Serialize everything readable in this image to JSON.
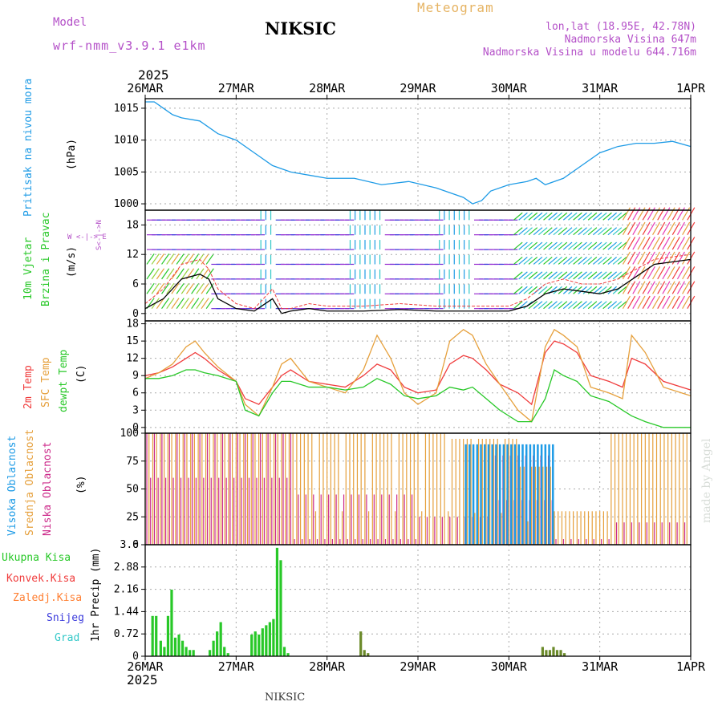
{
  "header": {
    "model_label": "Model",
    "model_name": "wrf-nmm_v3.9.1 e1km",
    "station_title": "NIKSIC",
    "meteogram_label": "Meteogram",
    "coords": "lon,lat (18.95E, 42.78N)",
    "altitude": "Nadmorska Visina 647m",
    "model_altitude": "Nadmorska Visina u modelu 644.716m"
  },
  "footer": {
    "station": "NIKSIC",
    "credit": "made by Angel"
  },
  "colors": {
    "pressure": "#1e9be6",
    "temp2m": "#f03c3c",
    "sfc": "#e6a03c",
    "dewpt": "#28c828",
    "high_cloud": "#1e9be6",
    "mid_cloud": "#e6a03c",
    "low_cloud": "#cc2a8a",
    "precip_total": "#28c828",
    "precip_conv": "#f03c3c",
    "precip_frozen": "#ff7f32",
    "snow": "#3c3cdc",
    "graupel": "#32c8c8",
    "header_purple": "#b450c8",
    "meteogram_orange": "#e6b464"
  },
  "chart_data": [
    {
      "type": "line",
      "panel": "pressure",
      "ylabel_main": "Pritisak na nivou mora",
      "ylabel_unit": "(hPa)",
      "x_ticks": [
        "26MAR",
        "27MAR",
        "28MAR",
        "29MAR",
        "30MAR",
        "31MAR",
        "1APR"
      ],
      "x_year_top": "2025",
      "x_ticks_bottom": [
        "26MAR",
        "27MAR",
        "28MAR",
        "29MAR",
        "30MAR",
        "31MAR",
        "1APR"
      ],
      "x_year_bottom": "2025",
      "ylim": [
        999,
        1016.5
      ],
      "y_ticks": [
        1000,
        1005,
        1010,
        1015
      ],
      "x": [
        0,
        0.1,
        0.2,
        0.3,
        0.4,
        0.6,
        0.8,
        1.0,
        1.2,
        1.4,
        1.6,
        1.8,
        2.0,
        2.3,
        2.6,
        2.9,
        3.2,
        3.5,
        3.6,
        3.7,
        3.8,
        4.0,
        4.2,
        4.3,
        4.4,
        4.6,
        4.8,
        5.0,
        5.2,
        5.4,
        5.6,
        5.8,
        6.0
      ],
      "series": [
        {
          "values": [
            1016,
            1016,
            1015,
            1014,
            1013.5,
            1013,
            1011,
            1010,
            1008,
            1006,
            1005,
            1004.5,
            1004,
            1004,
            1003,
            1003.5,
            1002.5,
            1001,
            1000,
            1000.5,
            1002,
            1003,
            1003.5,
            1004,
            1003,
            1004,
            1006,
            1008,
            1009,
            1009.5,
            1009.5,
            1009.8,
            1009
          ]
        }
      ]
    },
    {
      "type": "line",
      "panel": "wind",
      "ylabel_main": "10m Vjetar",
      "ylabel_main2": "Brzina i Pravac",
      "ylabel_unit": "(m/s)",
      "compass": "N\n^\nW <-|-> E\n v\n S",
      "ylim": [
        -1.5,
        21
      ],
      "y_ticks": [
        0,
        6,
        12,
        18
      ],
      "x": [
        0,
        0.2,
        0.4,
        0.6,
        0.7,
        0.8,
        1.0,
        1.2,
        1.4,
        1.5,
        1.6,
        1.8,
        2.0,
        2.4,
        2.8,
        3.2,
        3.6,
        4.0,
        4.2,
        4.4,
        4.6,
        4.8,
        5.0,
        5.2,
        5.6,
        6.0
      ],
      "series": [
        {
          "name": "mean",
          "values": [
            1,
            3,
            7,
            8,
            7,
            3,
            1,
            0.5,
            3,
            0,
            0.5,
            1,
            0.5,
            0.5,
            0.8,
            0.5,
            0.5,
            0.5,
            1.5,
            4,
            5,
            4.5,
            4,
            5,
            10,
            11
          ]
        },
        {
          "name": "gust",
          "values": [
            2,
            5,
            10,
            11,
            9,
            5,
            2,
            1,
            5,
            1,
            1,
            2,
            1.5,
            1.5,
            2,
            1.5,
            1.5,
            1.5,
            3,
            6,
            7,
            6,
            6,
            7,
            11,
            12
          ]
        }
      ],
      "barb_rows": [
        0,
        3,
        6,
        9,
        12,
        15,
        18
      ]
    },
    {
      "type": "line",
      "panel": "temperature",
      "ylabel_main": "2m Temp",
      "ylabel_main2": "SFC Temp",
      "ylabel_main3": "dewpt Temp",
      "ylabel_unit": "(C)",
      "ylim": [
        -1,
        18.5
      ],
      "y_ticks": [
        0,
        3,
        6,
        9,
        12,
        15,
        18
      ],
      "x": [
        0,
        0.15,
        0.3,
        0.45,
        0.55,
        0.65,
        0.8,
        1.0,
        1.1,
        1.25,
        1.4,
        1.5,
        1.6,
        1.8,
        2.0,
        2.2,
        2.4,
        2.55,
        2.7,
        2.85,
        3.0,
        3.2,
        3.35,
        3.5,
        3.6,
        3.75,
        3.9,
        4.1,
        4.25,
        4.4,
        4.5,
        4.6,
        4.75,
        4.9,
        5.1,
        5.25,
        5.35,
        5.5,
        5.7,
        6.0
      ],
      "series": [
        {
          "name": "2m Temp",
          "values": [
            9,
            9.5,
            10.5,
            12,
            13,
            12,
            10,
            8,
            5,
            4,
            7,
            9,
            10,
            8,
            7.5,
            7,
            9,
            11,
            10,
            7,
            6,
            6.5,
            11,
            12.5,
            12,
            10,
            7.5,
            6,
            4,
            13,
            15,
            14.5,
            13,
            9,
            8,
            7,
            12,
            11,
            8,
            6.5
          ]
        },
        {
          "name": "SFC Temp",
          "values": [
            8.5,
            9.5,
            11,
            14,
            15,
            13,
            10.5,
            8,
            4,
            2,
            7,
            11,
            12,
            8,
            7,
            6,
            10,
            16,
            12,
            6,
            4,
            6,
            15,
            17,
            16,
            11,
            7.5,
            3,
            1,
            14,
            17,
            16,
            14,
            7,
            6,
            5,
            16,
            13,
            7,
            5.5
          ]
        },
        {
          "name": "dewpt Temp",
          "values": [
            8.5,
            8.5,
            9,
            10,
            10,
            9.5,
            9,
            8,
            3,
            2,
            6,
            8,
            8,
            7,
            7,
            6.5,
            7,
            8.5,
            7.5,
            5.5,
            5,
            5.5,
            7,
            6.5,
            7,
            5,
            3,
            1,
            1,
            5,
            10,
            9,
            8,
            5.5,
            4.5,
            3,
            2,
            1,
            0,
            0
          ]
        }
      ]
    },
    {
      "type": "bar",
      "panel": "clouds",
      "ylabel_main": "Visoka Oblacnost",
      "ylabel_main2": "Srednja Oblacnost",
      "ylabel_main3": "Niska Oblacnost",
      "ylabel_unit": "(%)",
      "ylim": [
        0,
        100
      ],
      "y_ticks": [
        0,
        25,
        50,
        75,
        100
      ],
      "x_range": [
        0,
        6
      ],
      "bar_count": 144,
      "series": [
        {
          "name": "mid",
          "segments": [
            {
              "from": 0.0,
              "to": 3.35,
              "value": 100
            },
            {
              "from": 3.35,
              "to": 4.1,
              "value": 95
            },
            {
              "from": 4.1,
              "to": 4.5,
              "value": 70
            },
            {
              "from": 4.5,
              "to": 5.1,
              "value": 30
            },
            {
              "from": 5.1,
              "to": 6.0,
              "value": 100
            }
          ]
        },
        {
          "name": "low",
          "segments": [
            {
              "from": 0.0,
              "to": 1.6,
              "value": 100
            },
            {
              "from": 1.6,
              "to": 3.0,
              "value": 45
            },
            {
              "from": 3.0,
              "to": 3.8,
              "value": 25
            },
            {
              "from": 3.8,
              "to": 4.5,
              "value": 80
            },
            {
              "from": 4.5,
              "to": 5.1,
              "value": 5
            },
            {
              "from": 5.1,
              "to": 6.0,
              "value": 20
            }
          ]
        },
        {
          "name": "high",
          "segments": [
            {
              "from": 0.0,
              "to": 3.5,
              "value": 0
            },
            {
              "from": 3.5,
              "to": 4.5,
              "value": 90
            },
            {
              "from": 4.5,
              "to": 6.0,
              "value": 0
            }
          ]
        }
      ]
    },
    {
      "type": "bar",
      "panel": "precipitation",
      "legend": [
        "Ukupna Kisa",
        "Konvek.Kisa",
        "Zaledj.Kisa",
        "Snijeg",
        "Grad"
      ],
      "ylabel_unit": "1hr Precip (mm)",
      "ylim": [
        0,
        3.6
      ],
      "y_ticks": [
        0,
        0.72,
        1.44,
        2.16,
        2.88,
        3.6
      ],
      "x": [
        0.08,
        0.12,
        0.17,
        0.21,
        0.25,
        0.29,
        0.33,
        0.37,
        0.41,
        0.45,
        0.49,
        0.53,
        0.71,
        0.75,
        0.79,
        0.83,
        0.87,
        0.91,
        1.17,
        1.21,
        1.25,
        1.29,
        1.33,
        1.37,
        1.41,
        1.45,
        1.49,
        1.53,
        1.57,
        2.37,
        2.41,
        2.45,
        4.37,
        4.41,
        4.45,
        4.49,
        4.53,
        4.57,
        4.61
      ],
      "values": [
        1.3,
        1.3,
        0.5,
        0.3,
        1.3,
        2.15,
        0.6,
        0.7,
        0.5,
        0.3,
        0.2,
        0.2,
        0.2,
        0.5,
        0.8,
        1.1,
        0.3,
        0.1,
        0.7,
        0.8,
        0.7,
        0.9,
        1.0,
        1.1,
        1.2,
        3.5,
        3.1,
        0.3,
        0.1,
        0.8,
        0.2,
        0.1,
        0.3,
        0.2,
        0.2,
        0.3,
        0.2,
        0.2,
        0.1
      ],
      "x_ticks": [
        "26MAR",
        "27MAR",
        "28MAR",
        "29MAR",
        "30MAR",
        "31MAR",
        "1APR"
      ]
    }
  ]
}
